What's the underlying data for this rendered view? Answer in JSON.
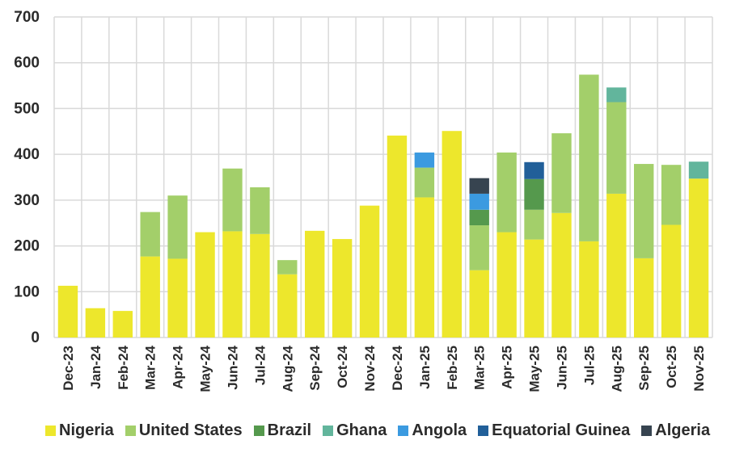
{
  "chart_data": {
    "type": "bar",
    "stacked": true,
    "title": "",
    "xlabel": "",
    "ylabel": "",
    "ylim": [
      0,
      700
    ],
    "yticks": [
      "0",
      "100",
      "200",
      "300",
      "400",
      "500",
      "600",
      "700"
    ],
    "grid": true,
    "legend_position": "bottom",
    "categories": [
      "Dec-23",
      "Jan-24",
      "Feb-24",
      "Mar-24",
      "Apr-24",
      "May-24",
      "Jun-24",
      "Jul-24",
      "Aug-24",
      "Sep-24",
      "Oct-24",
      "Nov-24",
      "Dec-24",
      "Jan-25",
      "Feb-25",
      "Mar-25",
      "Apr-25",
      "May-25",
      "Jun-25",
      "Jul-25",
      "Aug-25",
      "Sep-25",
      "Oct-25",
      "Nov-25"
    ],
    "series": [
      {
        "name": "Nigeria",
        "color": "#ede72c",
        "values": [
          113,
          64,
          58,
          177,
          172,
          230,
          232,
          226,
          138,
          233,
          215,
          288,
          441,
          306,
          451,
          147,
          230,
          214,
          272,
          210,
          314,
          173,
          246,
          347
        ]
      },
      {
        "name": "United States",
        "color": "#a3cf6a",
        "values": [
          0,
          0,
          0,
          97,
          138,
          0,
          137,
          102,
          31,
          0,
          0,
          0,
          0,
          65,
          0,
          98,
          174,
          65,
          174,
          364,
          200,
          206,
          131,
          0
        ]
      },
      {
        "name": "Brazil",
        "color": "#55994d",
        "values": [
          0,
          0,
          0,
          0,
          0,
          0,
          0,
          0,
          0,
          0,
          0,
          0,
          0,
          0,
          0,
          34,
          0,
          67,
          0,
          0,
          0,
          0,
          0,
          0
        ]
      },
      {
        "name": "Ghana",
        "color": "#62b59c",
        "values": [
          0,
          0,
          0,
          0,
          0,
          0,
          0,
          0,
          0,
          0,
          0,
          0,
          0,
          0,
          0,
          0,
          0,
          0,
          0,
          0,
          32,
          0,
          0,
          37
        ]
      },
      {
        "name": "Angola",
        "color": "#3b9ae0",
        "values": [
          0,
          0,
          0,
          0,
          0,
          0,
          0,
          0,
          0,
          0,
          0,
          0,
          0,
          33,
          0,
          35,
          0,
          0,
          0,
          0,
          0,
          0,
          0,
          0
        ]
      },
      {
        "name": "Equatorial Guinea",
        "color": "#215f99",
        "values": [
          0,
          0,
          0,
          0,
          0,
          0,
          0,
          0,
          0,
          0,
          0,
          0,
          0,
          0,
          0,
          0,
          0,
          37,
          0,
          0,
          0,
          0,
          0,
          0
        ]
      },
      {
        "name": "Algeria",
        "color": "#374450",
        "values": [
          0,
          0,
          0,
          0,
          0,
          0,
          0,
          0,
          0,
          0,
          0,
          0,
          0,
          0,
          0,
          34,
          0,
          0,
          0,
          0,
          0,
          0,
          0,
          0
        ]
      }
    ]
  }
}
